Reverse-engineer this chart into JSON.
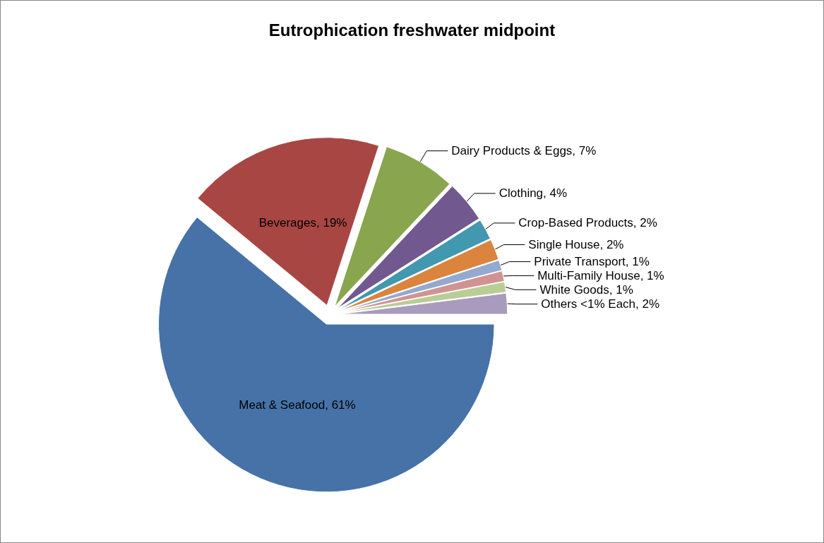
{
  "chart_data": {
    "type": "pie",
    "title": "Eutrophication freshwater midpoint",
    "categories": [
      "Meat & Seafood",
      "Beverages",
      "Dairy Products & Eggs",
      "Clothing",
      "Crop-Based Products",
      "Single House",
      "Private Transport",
      "Multi-Family House",
      "White Goods",
      "Others <1% Each"
    ],
    "values": [
      61,
      19,
      7,
      4,
      2,
      2,
      1,
      1,
      1,
      2
    ],
    "colors": [
      "#4672a8",
      "#a84644",
      "#89a54e",
      "#71588f",
      "#4198af",
      "#db843d",
      "#93a9cf",
      "#d19392",
      "#b9cd96",
      "#a99bbd"
    ],
    "value_labels": [
      "61%",
      "19%",
      "7%",
      "4%",
      "2%",
      "2%",
      "1%",
      "1%",
      "1%",
      "2%"
    ]
  }
}
